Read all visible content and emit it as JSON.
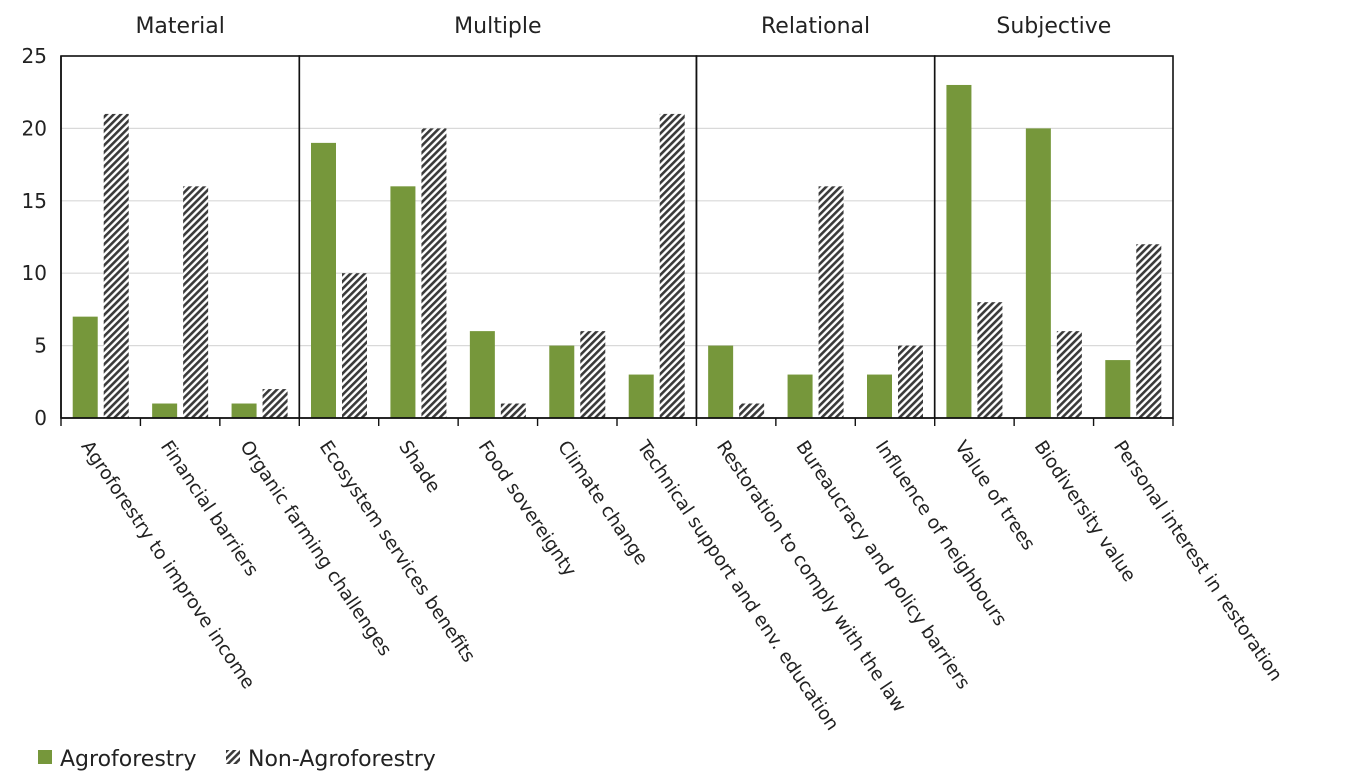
{
  "chart_data": {
    "type": "bar",
    "ylim": [
      0,
      25
    ],
    "yticks": [
      0,
      5,
      10,
      15,
      20,
      25
    ],
    "grid": true,
    "legend_position": "bottom-left",
    "groups": [
      {
        "label": "Material",
        "categories": [
          "Agroforestry to improve income",
          "Financial barriers",
          "Organic farming challenges"
        ]
      },
      {
        "label": "Multiple",
        "categories": [
          "Ecosystem services benefits",
          "Shade",
          "Food sovereignty",
          "Climate change",
          "Technical support and env. education"
        ]
      },
      {
        "label": "Relational",
        "categories": [
          "Restoration to comply with the law",
          "Bureaucracy and policy barriers",
          "Influence of neighbours"
        ]
      },
      {
        "label": "Subjective",
        "categories": [
          "Value of trees",
          "Biodiversity value",
          "Personal interest in restoration"
        ]
      }
    ],
    "categories": [
      "Agroforestry to improve income",
      "Financial barriers",
      "Organic farming challenges",
      "Ecosystem services benefits",
      "Shade",
      "Food sovereignty",
      "Climate change",
      "Technical support and env. education",
      "Restoration to comply with the law",
      "Bureaucracy and policy barriers",
      "Influence of neighbours",
      "Value of trees",
      "Biodiversity value",
      "Personal interest in restoration"
    ],
    "series": [
      {
        "name": "Agroforestry",
        "color": "#76973b",
        "pattern": "solid",
        "values": [
          7,
          1,
          1,
          19,
          16,
          6,
          5,
          3,
          5,
          3,
          3,
          23,
          20,
          4
        ]
      },
      {
        "name": "Non-Agroforestry",
        "color": "#3a3a3a",
        "pattern": "diagonal-hatch",
        "values": [
          21,
          16,
          2,
          10,
          20,
          1,
          6,
          21,
          1,
          16,
          5,
          8,
          6,
          12
        ]
      }
    ]
  }
}
